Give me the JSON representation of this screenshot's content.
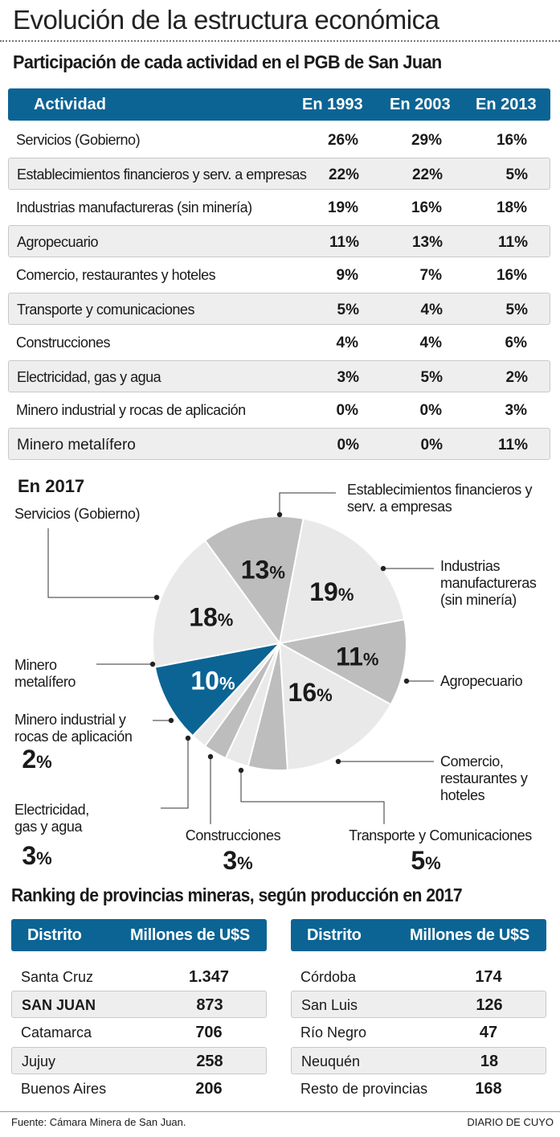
{
  "header": {
    "title": "Evolución de la estructura económica",
    "subtitle": "Participación de cada actividad en el PGB de San Juan"
  },
  "colors": {
    "accent": "#0c6494",
    "slice_light": "#e9e9e9",
    "slice_dark": "#bdbdbd",
    "alt_row": "#eeeeee"
  },
  "table": {
    "headers": [
      "Actividad",
      "En 1993",
      "En 2003",
      "En 2013"
    ],
    "rows": [
      {
        "name": "Servicios (Gobierno)",
        "v1993": "26%",
        "v2003": "29%",
        "v2013": "16%"
      },
      {
        "name": "Establecimientos financieros y serv. a empresas",
        "v1993": "22%",
        "v2003": "22%",
        "v2013": "5%"
      },
      {
        "name": "Industrias manufactureras (sin minería)",
        "v1993": "19%",
        "v2003": "16%",
        "v2013": "18%"
      },
      {
        "name": "Agropecuario",
        "v1993": "11%",
        "v2003": "13%",
        "v2013": "11%"
      },
      {
        "name": "Comercio, restaurantes y hoteles",
        "v1993": "9%",
        "v2003": "7%",
        "v2013": "16%"
      },
      {
        "name": "Transporte y comunicaciones",
        "v1993": "5%",
        "v2003": "4%",
        "v2013": "5%"
      },
      {
        "name": "Construcciones",
        "v1993": "4%",
        "v2003": "4%",
        "v2013": "6%"
      },
      {
        "name": "Electricidad, gas y agua",
        "v1993": "3%",
        "v2003": "5%",
        "v2013": "2%"
      },
      {
        "name": "Minero industrial y rocas de aplicación",
        "v1993": "0%",
        "v2003": "0%",
        "v2013": "3%"
      },
      {
        "name": "Minero metalífero",
        "v1993": "0%",
        "v2003": "0%",
        "v2013": "11%"
      }
    ]
  },
  "chart_data": {
    "type": "pie",
    "title": "En 2017",
    "slices": [
      {
        "key": "fin",
        "label": "Establecimientos financieros y serv. a empresas",
        "label_lines": [
          "Establecimientos financieros y",
          "serv. a empresas"
        ],
        "value": 13,
        "value_label": "13",
        "shade": "dark"
      },
      {
        "key": "ind",
        "label": "Industrias manufactureras (sin minería)",
        "label_lines": [
          "Industrias",
          "manufactureras",
          "(sin minería)"
        ],
        "value": 19,
        "value_label": "19",
        "shade": "light"
      },
      {
        "key": "agro",
        "label": "Agropecuario",
        "label_lines": [
          "Agropecuario"
        ],
        "value": 11,
        "value_label": "11",
        "shade": "dark"
      },
      {
        "key": "com",
        "label": "Comercio, restaurantes y hoteles",
        "label_lines": [
          "Comercio,",
          "restaurantes y",
          "hoteles"
        ],
        "value": 16,
        "value_label": "16",
        "shade": "light"
      },
      {
        "key": "trans",
        "label": "Transporte y Comunicaciones",
        "label_lines": [
          "Transporte y Comunicaciones"
        ],
        "value": 5,
        "value_label": "5",
        "shade": "dark"
      },
      {
        "key": "cons",
        "label": "Construcciones",
        "label_lines": [
          "Construcciones"
        ],
        "value": 3,
        "value_label": "3",
        "shade": "light"
      },
      {
        "key": "elec",
        "label": "Electricidad, gas y agua",
        "label_lines": [
          "Electricidad,",
          "gas y agua"
        ],
        "value": 3,
        "value_label": "3",
        "shade": "dark"
      },
      {
        "key": "mind",
        "label": "Minero industrial y rocas de aplicación",
        "label_lines": [
          "Minero industrial y",
          "rocas de aplicación"
        ],
        "value": 2,
        "value_label": "2",
        "shade": "light"
      },
      {
        "key": "mmet",
        "label": "Minero metalífero",
        "label_lines": [
          "Minero",
          "metalífero"
        ],
        "value": 10,
        "value_label": "10",
        "shade": "accent"
      },
      {
        "key": "serv",
        "label": "Servicios (Gobierno)",
        "label_lines": [
          "Servicios (Gobierno)"
        ],
        "value": 18,
        "value_label": "18",
        "shade": "light"
      }
    ],
    "unit": "%"
  },
  "ranking": {
    "title": "Ranking de provincias mineras, según producción en 2017",
    "headers": [
      "Distrito",
      "Millones de U$S"
    ],
    "left": [
      {
        "name": "Santa Cruz",
        "value": "1.347"
      },
      {
        "name": "SAN JUAN",
        "value": "873"
      },
      {
        "name": "Catamarca",
        "value": "706"
      },
      {
        "name": "Jujuy",
        "value": "258"
      },
      {
        "name": "Buenos Aires",
        "value": "206"
      }
    ],
    "right": [
      {
        "name": "Córdoba",
        "value": "174"
      },
      {
        "name": "San Luis",
        "value": "126"
      },
      {
        "name": "Río Negro",
        "value": "47"
      },
      {
        "name": "Neuquén",
        "value": "18"
      },
      {
        "name": "Resto de provincias",
        "value": "168"
      }
    ]
  },
  "footer": {
    "source": "Fuente: Cámara Minera de San Juan.",
    "brand": "DIARIO DE CUYO"
  }
}
